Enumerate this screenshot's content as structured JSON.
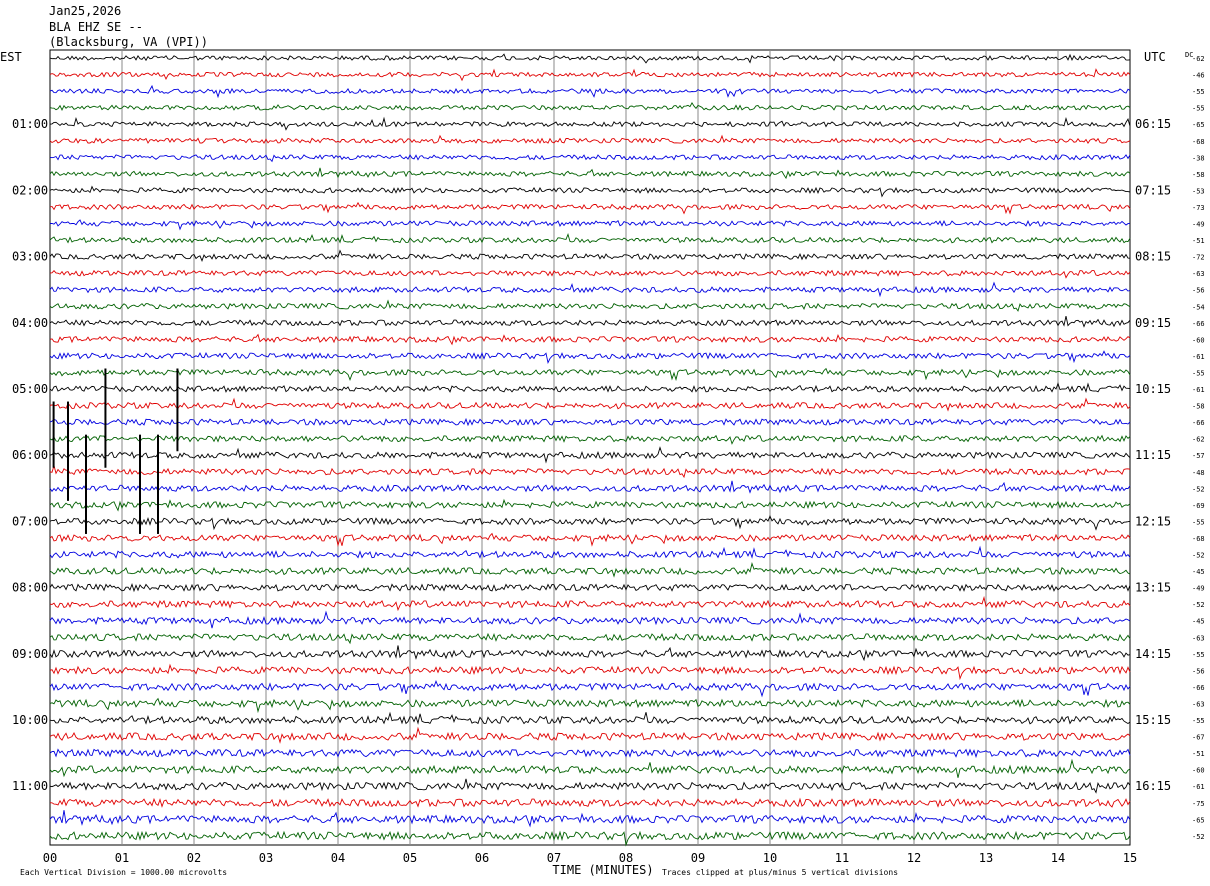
{
  "header": {
    "date": "Jan25,2026",
    "station": "BLA EHZ SE --",
    "location": "(Blacksburg, VA (VPI))"
  },
  "chart_data": {
    "type": "line",
    "title": "Jan25,2026",
    "xlabel": "TIME (MINUTES)",
    "left_axis_label": "EST",
    "right_axis_label": "UTC",
    "dc_label": "DC",
    "x_ticks": [
      "00",
      "01",
      "02",
      "03",
      "04",
      "05",
      "06",
      "07",
      "08",
      "09",
      "10",
      "11",
      "12",
      "13",
      "14",
      "15"
    ],
    "xlim": [
      0,
      15
    ],
    "left_time_labels": [
      "01:00",
      "02:00",
      "03:00",
      "04:00",
      "05:00",
      "06:00",
      "07:00",
      "08:00",
      "09:00",
      "10:00",
      "11:00"
    ],
    "right_time_labels": [
      "06:15",
      "07:15",
      "08:15",
      "09:15",
      "10:15",
      "11:15",
      "12:15",
      "13:15",
      "14:15",
      "15:15",
      "16:15"
    ],
    "dc_offsets": [
      -62,
      -46,
      -55,
      -55,
      -65,
      -68,
      -38,
      -58,
      -53,
      -73,
      -49,
      -51,
      -72,
      -63,
      -56,
      -54,
      -66,
      -60,
      -61,
      -55,
      -61,
      -58,
      -66,
      -62,
      -57,
      -48,
      -52,
      -69,
      -55,
      -68,
      -52,
      -45,
      -49,
      -52,
      -45,
      -63,
      -55,
      -56,
      -66,
      -63,
      -55,
      -67,
      -51,
      -60,
      -61,
      -75,
      -65,
      -52
    ],
    "trace_colors": [
      "#000000",
      "#e00000",
      "#0000e0",
      "#006000"
    ],
    "grid": true,
    "footer_left": "Each Vertical Division = 1000.00 microvolts",
    "footer_right": "Traces clipped at plus/minus 5 vertical divisions"
  }
}
